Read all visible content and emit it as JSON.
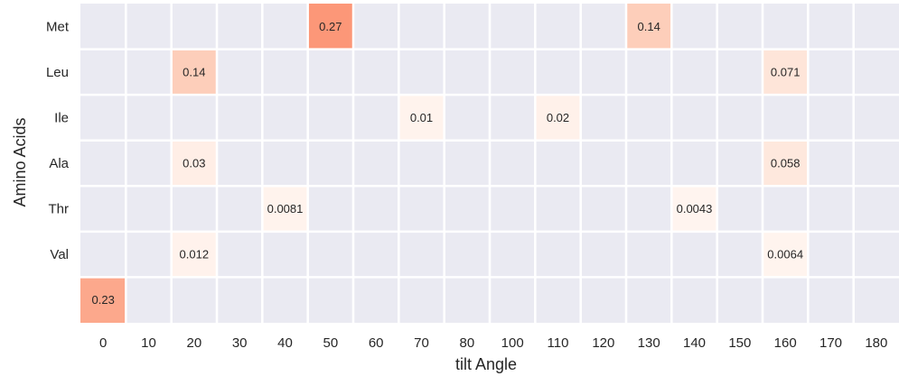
{
  "chart_data": {
    "type": "heatmap",
    "title": "",
    "xlabel": "tilt Angle",
    "ylabel": "Amino Acids",
    "x_categories": [
      "0",
      "10",
      "20",
      "30",
      "40",
      "50",
      "60",
      "70",
      "80",
      "100",
      "110",
      "120",
      "130",
      "140",
      "150",
      "160",
      "170",
      "180"
    ],
    "y_categories": [
      "Met",
      "Leu",
      "Ile",
      "Ala",
      "Thr",
      "Val",
      ""
    ],
    "cells": [
      {
        "row": "Met",
        "col": "50",
        "value": 0.27,
        "label": "0.27"
      },
      {
        "row": "Met",
        "col": "130",
        "value": 0.14,
        "label": "0.14"
      },
      {
        "row": "Leu",
        "col": "20",
        "value": 0.14,
        "label": "0.14"
      },
      {
        "row": "Leu",
        "col": "160",
        "value": 0.071,
        "label": "0.071"
      },
      {
        "row": "Ile",
        "col": "70",
        "value": 0.01,
        "label": "0.01"
      },
      {
        "row": "Ile",
        "col": "110",
        "value": 0.02,
        "label": "0.02"
      },
      {
        "row": "Ala",
        "col": "20",
        "value": 0.03,
        "label": "0.03"
      },
      {
        "row": "Ala",
        "col": "160",
        "value": 0.058,
        "label": "0.058"
      },
      {
        "row": "Thr",
        "col": "40",
        "value": 0.0081,
        "label": "0.0081"
      },
      {
        "row": "Thr",
        "col": "140",
        "value": 0.0043,
        "label": "0.0043"
      },
      {
        "row": "Val",
        "col": "20",
        "value": 0.012,
        "label": "0.012"
      },
      {
        "row": "Val",
        "col": "160",
        "value": 0.0064,
        "label": "0.0064"
      },
      {
        "row": "",
        "col": "0",
        "value": 0.23,
        "label": "0.23"
      }
    ],
    "colormap": "Reds",
    "background_color": "#eaeaf2",
    "grid_color": "#ffffff",
    "legend": "none"
  }
}
